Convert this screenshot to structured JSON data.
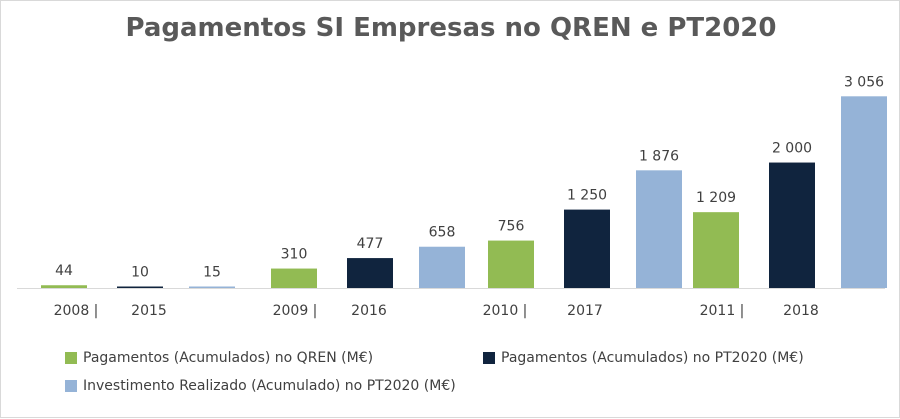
{
  "chart_data": {
    "type": "bar",
    "title": "Pagamentos SI Empresas no QREN e PT2020",
    "groups": [
      {
        "qren_year": "2008",
        "pt2020_year": "2015"
      },
      {
        "qren_year": "2009",
        "pt2020_year": "2016"
      },
      {
        "qren_year": "2010",
        "pt2020_year": "2017"
      },
      {
        "qren_year": "2011",
        "pt2020_year": "2018"
      }
    ],
    "separator": "|",
    "series": [
      {
        "name": "Pagamentos (Acumulados) no QREN (M€)",
        "color": "#92bb53",
        "values": [
          44,
          310,
          756,
          1209
        ],
        "labels": [
          "44",
          "310",
          "756",
          "1 209"
        ]
      },
      {
        "name": "Pagamentos (Acumulados) no PT2020 (M€)",
        "color": "#10243e",
        "values": [
          10,
          477,
          1250,
          2000
        ],
        "labels": [
          "10",
          "477",
          "1 250",
          "2 000"
        ]
      },
      {
        "name": "Investimento Realizado (Acumulado) no PT2020 (M€)",
        "color": "#95b3d7",
        "values": [
          15,
          658,
          1876,
          3056
        ],
        "labels": [
          "15",
          "658",
          "1 876",
          "3 056"
        ]
      }
    ],
    "ylim": [
      0,
      3300
    ],
    "grid": false,
    "legend_position": "bottom"
  }
}
